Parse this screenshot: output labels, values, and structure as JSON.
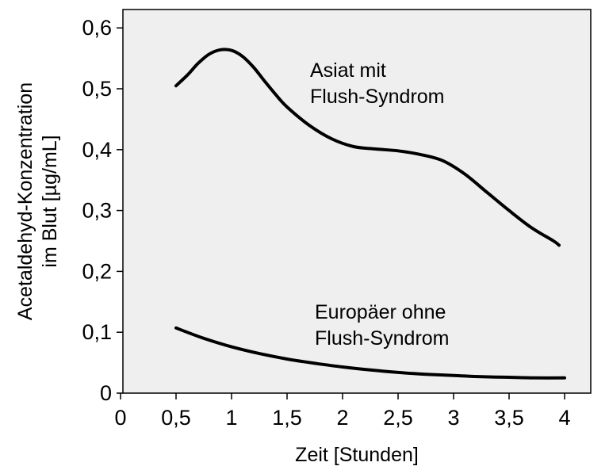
{
  "chart_data": {
    "type": "line",
    "title": "",
    "xlabel": "Zeit [Stunden]",
    "ylabel_lines": [
      "Acetaldehyd-Konzentration",
      "im Blut [µg/mL]"
    ],
    "xlim": [
      0,
      4.2
    ],
    "ylim": [
      0,
      0.64
    ],
    "x_ticks": [
      0,
      0.5,
      1,
      1.5,
      2,
      2.5,
      3,
      3.5,
      4
    ],
    "x_tick_labels": [
      "0",
      "0,5",
      "1",
      "1,5",
      "2",
      "2,5",
      "3",
      "3,5",
      "4"
    ],
    "y_ticks": [
      0,
      0.1,
      0.2,
      0.3,
      0.4,
      0.5,
      0.6
    ],
    "y_tick_labels": [
      "0",
      "0,1",
      "0,2",
      "0,3",
      "0,4",
      "0,5",
      "0,6"
    ],
    "grid": false,
    "series": [
      {
        "annotation_lines": [
          "Asiat mit",
          "Flush-Syndrom"
        ],
        "x": [
          0.5,
          0.6,
          0.7,
          0.8,
          0.9,
          1.0,
          1.1,
          1.2,
          1.3,
          1.4,
          1.5,
          1.7,
          1.9,
          2.1,
          2.3,
          2.5,
          2.7,
          2.9,
          3.1,
          3.3,
          3.5,
          3.7,
          3.9,
          3.95
        ],
        "y": [
          0.505,
          0.522,
          0.542,
          0.557,
          0.564,
          0.563,
          0.553,
          0.535,
          0.512,
          0.49,
          0.47,
          0.44,
          0.418,
          0.405,
          0.401,
          0.398,
          0.392,
          0.382,
          0.36,
          0.33,
          0.3,
          0.272,
          0.25,
          0.243
        ]
      },
      {
        "annotation_lines": [
          "Europäer ohne",
          "Flush-Syndrom"
        ],
        "x": [
          0.5,
          0.75,
          1.0,
          1.25,
          1.5,
          1.75,
          2.0,
          2.25,
          2.5,
          2.75,
          3.0,
          3.25,
          3.5,
          3.75,
          4.0
        ],
        "y": [
          0.107,
          0.09,
          0.076,
          0.065,
          0.056,
          0.049,
          0.043,
          0.038,
          0.034,
          0.031,
          0.029,
          0.027,
          0.026,
          0.025,
          0.025
        ]
      }
    ],
    "line_color": "#000000",
    "plot_background": "#efefef"
  }
}
